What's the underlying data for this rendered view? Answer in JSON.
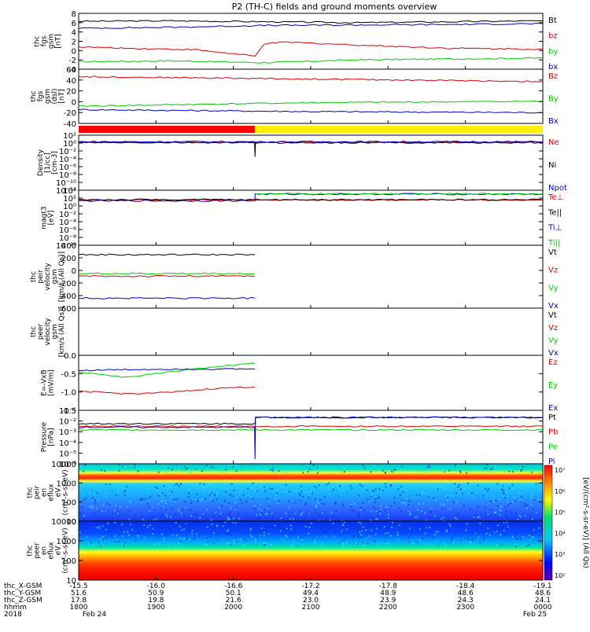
{
  "title": "P2 (TH-C) fields and ground moments overview",
  "colors": {
    "black": "#000000",
    "red": "#dd0000",
    "green": "#00cc00",
    "blue": "#0000cc",
    "bar_red": "#ff0000",
    "bar_yellow": "#ffee00"
  },
  "chart_data": [
    {
      "type": "line",
      "ylabel": [
        "thc",
        "fgs",
        "gsm",
        "[nT]"
      ],
      "ylim": [
        -4,
        8
      ],
      "yticks": [
        "8",
        "6",
        "4",
        "2",
        "0",
        "-2",
        "-4"
      ],
      "legend": [
        {
          "label": "Bt",
          "color": "#000000"
        },
        {
          "label": "bz",
          "color": "#dd0000"
        },
        {
          "label": "by",
          "color": "#00cc00"
        },
        {
          "label": "bx",
          "color": "#0000cc"
        }
      ],
      "series": [
        {
          "name": "Bt",
          "x": [
            0,
            0.2,
            0.4,
            0.6,
            0.8,
            1.0
          ],
          "values": [
            6.3,
            6.4,
            6.2,
            6.0,
            6.2,
            6.4
          ]
        },
        {
          "name": "bz",
          "x": [
            0,
            0.1,
            0.25,
            0.38,
            0.4,
            0.45,
            0.6,
            0.8,
            1.0
          ],
          "values": [
            0.8,
            0.5,
            0.2,
            -1.2,
            1.5,
            1.8,
            1.2,
            0.5,
            0.3
          ]
        },
        {
          "name": "by",
          "x": [
            0,
            0.2,
            0.4,
            0.6,
            0.8,
            1.0
          ],
          "values": [
            -2.4,
            -2.2,
            -2.6,
            -2.0,
            -1.8,
            -1.6
          ]
        },
        {
          "name": "bx",
          "x": [
            0,
            0.2,
            0.4,
            0.6,
            0.8,
            1.0
          ],
          "values": [
            4.8,
            5.0,
            5.4,
            5.5,
            5.6,
            5.8
          ]
        }
      ]
    },
    {
      "type": "line",
      "ylabel": [
        "thc",
        "fgs",
        "gsm",
        "(dsl)",
        "[nT]"
      ],
      "ylim": [
        -50,
        60
      ],
      "yticks": [
        "60",
        "40",
        "20",
        "0",
        "-20",
        "-40"
      ],
      "legend": [
        {
          "label": "Bz",
          "color": "#dd0000"
        },
        {
          "label": "By",
          "color": "#00cc00"
        },
        {
          "label": "Bx",
          "color": "#0000cc"
        }
      ],
      "series": [
        {
          "name": "Bz",
          "x": [
            0,
            0.5,
            1.0
          ],
          "values": [
            45,
            40,
            35
          ]
        },
        {
          "name": "By",
          "x": [
            0,
            0.5,
            1.0
          ],
          "values": [
            -15,
            -8,
            -5
          ]
        },
        {
          "name": "Bx",
          "x": [
            0,
            0.5,
            1.0
          ],
          "values": [
            -22,
            -26,
            -28
          ]
        }
      ]
    },
    {
      "type": "bar",
      "segments": [
        {
          "from": 0,
          "to": 0.38,
          "color": "#ff0000"
        },
        {
          "from": 0.38,
          "to": 1.0,
          "color": "#ffee00"
        }
      ]
    },
    {
      "type": "line",
      "ylabel": [
        "Density",
        "[1/cc]",
        "[cm-3]"
      ],
      "ylim": [
        -12,
        2
      ],
      "yticks": [
        "10²",
        "10⁰",
        "10⁻²",
        "10⁻⁴",
        "10⁻⁶",
        "10⁻⁸",
        "10⁻¹⁰",
        "10⁻¹²"
      ],
      "legend": [
        {
          "label": "Ne",
          "color": "#dd0000"
        },
        {
          "label": "Ni",
          "color": "#000000"
        },
        {
          "label": "Npot",
          "color": "#0000cc"
        }
      ],
      "series": [
        {
          "name": "Ne",
          "x": [
            0,
            1.0
          ],
          "values": [
            0.2,
            0.2
          ]
        },
        {
          "name": "Ni",
          "x": [
            0,
            0.379,
            0.38,
            0.381,
            1.0
          ],
          "values": [
            0.1,
            0.1,
            -3.5,
            0.1,
            0.1
          ]
        },
        {
          "name": "Npot",
          "x": [
            0,
            1.0
          ],
          "values": [
            0.35,
            0.35
          ]
        }
      ]
    },
    {
      "type": "line",
      "ylabel": [
        "magt3",
        "[eV]"
      ],
      "ylim": [
        -10,
        4
      ],
      "yticks": [
        "10⁴",
        "10²",
        "10⁰",
        "10⁻²",
        "10⁻⁴",
        "10⁻⁶",
        "10⁻⁸",
        "10⁻¹⁰"
      ],
      "legend": [
        {
          "label": "Te⊥",
          "color": "#dd0000"
        },
        {
          "label": "Te||",
          "color": "#000000"
        },
        {
          "label": "Ti⊥",
          "color": "#0000cc"
        },
        {
          "label": "Ti||",
          "color": "#00cc00"
        }
      ],
      "series": [
        {
          "name": "Te⊥",
          "x": [
            0,
            1.0
          ],
          "values": [
            1.5,
            1.5
          ]
        },
        {
          "name": "Te||",
          "x": [
            0,
            1.0
          ],
          "values": [
            1.6,
            1.6
          ]
        },
        {
          "name": "Ti⊥",
          "x": [
            0,
            0.38,
            0.38,
            1.0
          ],
          "values": [
            1.3,
            1.3,
            3.0,
            3.0
          ]
        },
        {
          "name": "Ti||",
          "x": [
            0.38,
            1.0
          ],
          "values": [
            3.1,
            3.1
          ]
        }
      ]
    },
    {
      "type": "line",
      "ylabel": [
        "thc",
        "peir",
        "velocity",
        "gsm",
        "[km/s (All Qs)]"
      ],
      "ylim": [
        -600,
        600
      ],
      "yticks": [
        "400",
        "200",
        "0",
        "-200",
        "-400",
        "-600"
      ],
      "legend": [
        {
          "label": "Vt",
          "color": "#000000"
        },
        {
          "label": "Vz",
          "color": "#dd0000"
        },
        {
          "label": "Vy",
          "color": "#00cc00"
        },
        {
          "label": "Vx",
          "color": "#0000cc"
        }
      ],
      "series": [
        {
          "name": "Vt",
          "x": [
            0,
            0.38
          ],
          "values": [
            420,
            420
          ]
        },
        {
          "name": "Vz",
          "x": [
            0,
            0.38
          ],
          "values": [
            10,
            10
          ]
        },
        {
          "name": "Vy",
          "x": [
            0,
            0.38
          ],
          "values": [
            60,
            60
          ]
        },
        {
          "name": "Vx",
          "x": [
            0,
            0.38
          ],
          "values": [
            -410,
            -410
          ]
        }
      ]
    },
    {
      "type": "line",
      "ylabel": [
        "thc",
        "peer",
        "velocity",
        "gsm",
        "[km/s (All Qs)]"
      ],
      "ylim": [
        -1,
        1
      ],
      "yticks": [],
      "legend": [
        {
          "label": "Vt",
          "color": "#000000"
        },
        {
          "label": "Vz",
          "color": "#dd0000"
        },
        {
          "label": "Vy",
          "color": "#00cc00"
        },
        {
          "label": "Vx",
          "color": "#0000cc"
        }
      ],
      "series": []
    },
    {
      "type": "line",
      "ylabel": [
        "E=-VxB",
        "[mV/m]"
      ],
      "ylim": [
        -1.5,
        0.5
      ],
      "yticks": [
        "0.0",
        "-0.5",
        "-1.0",
        "-1.5"
      ],
      "legend": [
        {
          "label": "Ez",
          "color": "#dd0000"
        },
        {
          "label": "Ey",
          "color": "#00cc00"
        },
        {
          "label": "Ex",
          "color": "#0000cc"
        }
      ],
      "series": [
        {
          "name": "Ez",
          "x": [
            0,
            0.1,
            0.2,
            0.3,
            0.38
          ],
          "values": [
            -0.8,
            -0.9,
            -0.85,
            -0.7,
            -0.65
          ]
        },
        {
          "name": "Ey",
          "x": [
            0,
            0.1,
            0.2,
            0.3,
            0.38
          ],
          "values": [
            -0.1,
            -0.3,
            -0.1,
            0.1,
            0.2
          ]
        },
        {
          "name": "Ex",
          "x": [
            0,
            0.1,
            0.2,
            0.3,
            0.38
          ],
          "values": [
            -0.05,
            -0.02,
            0.0,
            0.0,
            0.0
          ]
        }
      ]
    },
    {
      "type": "line",
      "ylabel": [
        "Pressure",
        "[nPa]"
      ],
      "ylim": [
        -6,
        0
      ],
      "yticks": [
        "10⁻¹",
        "10⁻²",
        "10⁻³",
        "10⁻⁴",
        "10⁻⁵",
        "10⁻⁶"
      ],
      "legend": [
        {
          "label": "Pt",
          "color": "#000000"
        },
        {
          "label": "Pb",
          "color": "#dd0000"
        },
        {
          "label": "Pe",
          "color": "#00cc00"
        },
        {
          "label": "Pi",
          "color": "#0000cc"
        }
      ],
      "series": [
        {
          "name": "Pt",
          "x": [
            0,
            0.38,
            0.381,
            1.0
          ],
          "values": [
            -1.5,
            -1.5,
            -0.8,
            -0.8
          ]
        },
        {
          "name": "Pb",
          "x": [
            0,
            1.0
          ],
          "values": [
            -1.8,
            -1.8
          ]
        },
        {
          "name": "Pe",
          "x": [
            0,
            1.0
          ],
          "values": [
            -2.2,
            -2.2
          ]
        },
        {
          "name": "Pi",
          "x": [
            0,
            0.379,
            0.38,
            0.381,
            1.0
          ],
          "values": [
            -1.9,
            -1.9,
            -5.5,
            -0.8,
            -0.8
          ]
        }
      ]
    },
    {
      "type": "heatmap",
      "ylabel": [
        "thc",
        "peir",
        "en",
        "eflux",
        "eV",
        "(cm²-s-sr-eV)"
      ],
      "yticks": [
        "10000",
        "1000",
        "100",
        "10"
      ]
    },
    {
      "type": "heatmap",
      "ylabel": [
        "thc",
        "peer",
        "en",
        "eflux",
        "eV",
        "(cm²-s-sr-eV)"
      ],
      "yticks": [
        "10000",
        "1000",
        "100",
        "10"
      ]
    }
  ],
  "colorbar": {
    "label": "[eV/(cm²-s-sr-eV)] (All Qs)",
    "ticks": [
      "10⁷",
      "10⁶",
      "10⁵",
      "10⁴",
      "10³",
      "10²"
    ]
  },
  "xaxis_rows": [
    {
      "label": "thc_X-GSM",
      "values": [
        "-15.5",
        "-16.0",
        "-16.6",
        "-17.2",
        "-17.8",
        "-18.4",
        "-19.1"
      ]
    },
    {
      "label": "thc_Y-GSM",
      "values": [
        "51.6",
        "50.9",
        "50.1",
        "49.4",
        "48.9",
        "48.6",
        "48.6"
      ]
    },
    {
      "label": "thc_Z-GSM",
      "values": [
        "17.8",
        "19.8",
        "21.6",
        "23.0",
        "23.9",
        "24.3",
        "24.1"
      ]
    },
    {
      "label": "hhmm",
      "values": [
        "1800",
        "1900",
        "2000",
        "2100",
        "2200",
        "2300",
        "0000"
      ]
    }
  ],
  "xaxis_dates": {
    "year": "2018",
    "start": "Feb 24",
    "end": "Feb 25"
  }
}
